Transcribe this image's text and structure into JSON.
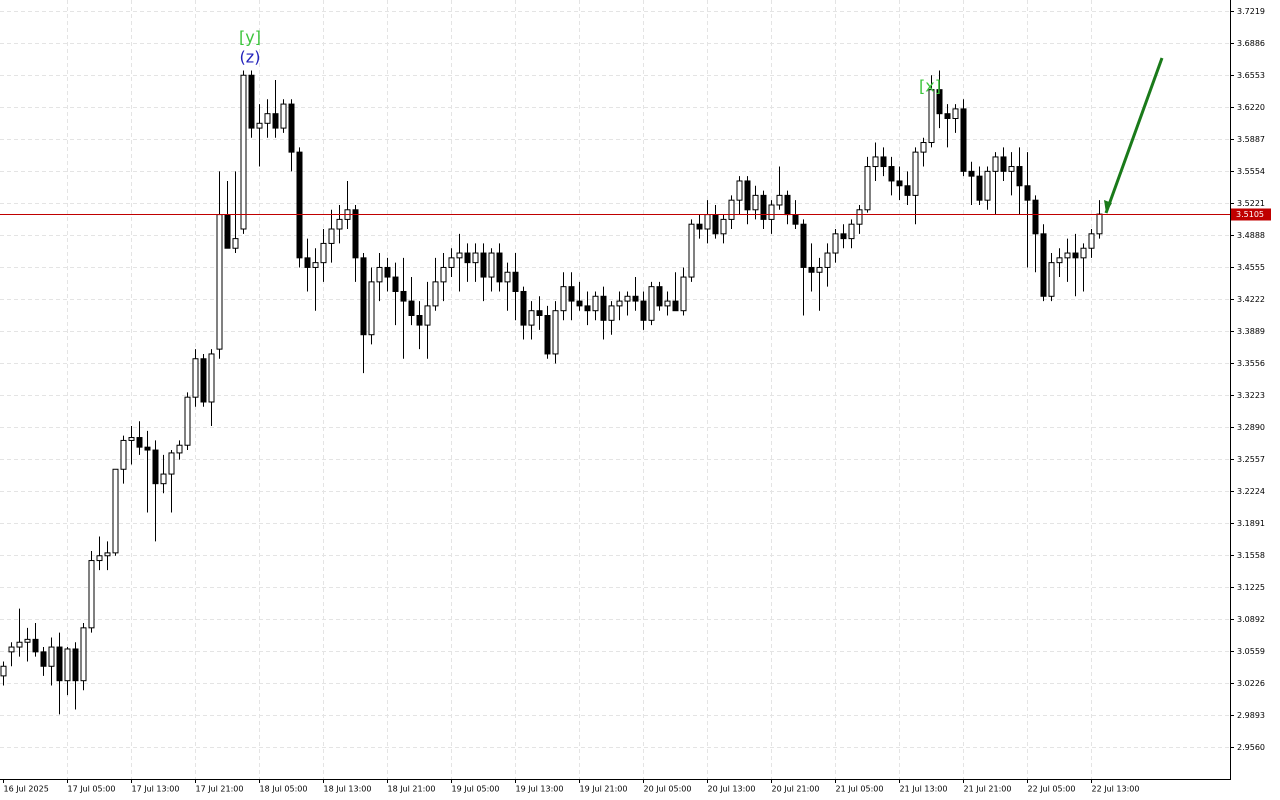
{
  "chart_data": {
    "type": "candlestick",
    "categories": [
      "16 Jul 2025",
      null,
      null,
      null,
      null,
      null,
      null,
      null,
      "17 Jul 05:00",
      null,
      null,
      null,
      null,
      null,
      null,
      null,
      "17 Jul 13:00",
      null,
      null,
      null,
      null,
      null,
      null,
      null,
      "17 Jul 21:00",
      null,
      null,
      null,
      null,
      null,
      null,
      null,
      "18 Jul 05:00",
      null,
      null,
      null,
      null,
      null,
      null,
      null,
      "18 Jul 13:00",
      null,
      null,
      null,
      null,
      null,
      null,
      null,
      "18 Jul 21:00",
      null,
      null,
      null,
      null,
      null,
      null,
      null,
      "19 Jul 05:00",
      null,
      null,
      null,
      null,
      null,
      null,
      null,
      "19 Jul 13:00",
      null,
      null,
      null,
      null,
      null,
      null,
      null,
      "19 Jul 21:00",
      null,
      null,
      null,
      null,
      null,
      null,
      null,
      "20 Jul 05:00",
      null,
      null,
      null,
      null,
      null,
      null,
      null,
      "20 Jul 13:00",
      null,
      null,
      null,
      null,
      null,
      null,
      null,
      "20 Jul 21:00",
      null,
      null,
      null,
      null,
      null,
      null,
      null,
      "21 Jul 05:00",
      null,
      null,
      null,
      null,
      null,
      null,
      null,
      "21 Jul 13:00",
      null,
      null,
      null,
      null,
      null,
      null,
      null,
      "21 Jul 21:00",
      null,
      null,
      null,
      null,
      null,
      null,
      null,
      "22 Jul 05:00",
      null,
      null,
      null,
      null,
      null,
      null,
      null,
      "22 Jul 13:00",
      null
    ],
    "ohlc": [
      [
        3.03,
        3.045,
        3.02,
        3.04
      ],
      [
        3.055,
        3.065,
        3.04,
        3.06
      ],
      [
        3.06,
        3.1,
        3.05,
        3.065
      ],
      [
        3.065,
        3.08,
        3.045,
        3.068
      ],
      [
        3.068,
        3.085,
        3.05,
        3.055
      ],
      [
        3.055,
        3.06,
        3.03,
        3.04
      ],
      [
        3.04,
        3.07,
        3.02,
        3.06
      ],
      [
        3.06,
        3.075,
        2.99,
        3.025
      ],
      [
        3.025,
        3.06,
        3.01,
        3.058
      ],
      [
        3.058,
        3.065,
        2.995,
        3.025
      ],
      [
        3.025,
        3.085,
        3.015,
        3.08
      ],
      [
        3.08,
        3.16,
        3.075,
        3.15
      ],
      [
        3.15,
        3.175,
        3.14,
        3.155
      ],
      [
        3.155,
        3.17,
        3.14,
        3.158
      ],
      [
        3.158,
        3.245,
        3.155,
        3.245
      ],
      [
        3.245,
        3.28,
        3.23,
        3.275
      ],
      [
        3.275,
        3.29,
        3.25,
        3.278
      ],
      [
        3.278,
        3.295,
        3.26,
        3.268
      ],
      [
        3.268,
        3.285,
        3.2,
        3.265
      ],
      [
        3.265,
        3.275,
        3.17,
        3.23
      ],
      [
        3.23,
        3.26,
        3.22,
        3.24
      ],
      [
        3.24,
        3.265,
        3.2,
        3.262
      ],
      [
        3.262,
        3.275,
        3.255,
        3.27
      ],
      [
        3.27,
        3.325,
        3.265,
        3.32
      ],
      [
        3.32,
        3.37,
        3.31,
        3.36
      ],
      [
        3.36,
        3.365,
        3.31,
        3.315
      ],
      [
        3.315,
        3.37,
        3.29,
        3.365
      ],
      [
        3.37,
        3.555,
        3.36,
        3.51
      ],
      [
        3.51,
        3.545,
        3.475,
        3.475
      ],
      [
        3.475,
        3.555,
        3.47,
        3.485
      ],
      [
        3.495,
        3.66,
        3.49,
        3.655
      ],
      [
        3.655,
        3.66,
        3.59,
        3.6
      ],
      [
        3.6,
        3.625,
        3.56,
        3.605
      ],
      [
        3.605,
        3.63,
        3.59,
        3.615
      ],
      [
        3.615,
        3.65,
        3.59,
        3.6
      ],
      [
        3.6,
        3.63,
        3.595,
        3.625
      ],
      [
        3.625,
        3.63,
        3.555,
        3.575
      ],
      [
        3.575,
        3.58,
        3.455,
        3.465
      ],
      [
        3.465,
        3.485,
        3.43,
        3.455
      ],
      [
        3.455,
        3.475,
        3.41,
        3.46
      ],
      [
        3.46,
        3.495,
        3.44,
        3.48
      ],
      [
        3.48,
        3.515,
        3.46,
        3.495
      ],
      [
        3.495,
        3.52,
        3.48,
        3.505
      ],
      [
        3.505,
        3.545,
        3.495,
        3.515
      ],
      [
        3.515,
        3.52,
        3.44,
        3.465
      ],
      [
        3.465,
        3.47,
        3.345,
        3.385
      ],
      [
        3.385,
        3.455,
        3.375,
        3.44
      ],
      [
        3.44,
        3.47,
        3.42,
        3.455
      ],
      [
        3.455,
        3.465,
        3.43,
        3.445
      ],
      [
        3.445,
        3.46,
        3.395,
        3.43
      ],
      [
        3.43,
        3.465,
        3.36,
        3.42
      ],
      [
        3.42,
        3.445,
        3.395,
        3.405
      ],
      [
        3.405,
        3.42,
        3.37,
        3.395
      ],
      [
        3.395,
        3.44,
        3.36,
        3.415
      ],
      [
        3.415,
        3.465,
        3.41,
        3.44
      ],
      [
        3.44,
        3.47,
        3.42,
        3.455
      ],
      [
        3.455,
        3.475,
        3.445,
        3.465
      ],
      [
        3.465,
        3.49,
        3.43,
        3.47
      ],
      [
        3.47,
        3.48,
        3.44,
        3.46
      ],
      [
        3.46,
        3.48,
        3.44,
        3.47
      ],
      [
        3.47,
        3.48,
        3.42,
        3.445
      ],
      [
        3.445,
        3.475,
        3.43,
        3.47
      ],
      [
        3.47,
        3.48,
        3.43,
        3.44
      ],
      [
        3.44,
        3.46,
        3.41,
        3.45
      ],
      [
        3.45,
        3.47,
        3.4,
        3.43
      ],
      [
        3.43,
        3.435,
        3.38,
        3.395
      ],
      [
        3.395,
        3.42,
        3.38,
        3.41
      ],
      [
        3.41,
        3.425,
        3.39,
        3.405
      ],
      [
        3.405,
        3.415,
        3.36,
        3.365
      ],
      [
        3.365,
        3.42,
        3.355,
        3.41
      ],
      [
        3.41,
        3.45,
        3.4,
        3.435
      ],
      [
        3.435,
        3.45,
        3.4,
        3.42
      ],
      [
        3.42,
        3.44,
        3.41,
        3.415
      ],
      [
        3.415,
        3.43,
        3.395,
        3.41
      ],
      [
        3.41,
        3.43,
        3.4,
        3.425
      ],
      [
        3.425,
        3.435,
        3.38,
        3.4
      ],
      [
        3.4,
        3.42,
        3.385,
        3.415
      ],
      [
        3.415,
        3.43,
        3.4,
        3.42
      ],
      [
        3.42,
        3.43,
        3.405,
        3.425
      ],
      [
        3.425,
        3.445,
        3.41,
        3.42
      ],
      [
        3.42,
        3.43,
        3.39,
        3.4
      ],
      [
        3.4,
        3.44,
        3.395,
        3.435
      ],
      [
        3.435,
        3.44,
        3.41,
        3.415
      ],
      [
        3.415,
        3.43,
        3.405,
        3.42
      ],
      [
        3.42,
        3.45,
        3.41,
        3.41
      ],
      [
        3.41,
        3.455,
        3.405,
        3.445
      ],
      [
        3.445,
        3.505,
        3.44,
        3.5
      ],
      [
        3.5,
        3.51,
        3.485,
        3.495
      ],
      [
        3.495,
        3.525,
        3.48,
        3.51
      ],
      [
        3.51,
        3.52,
        3.485,
        3.49
      ],
      [
        3.49,
        3.51,
        3.48,
        3.505
      ],
      [
        3.505,
        3.53,
        3.495,
        3.525
      ],
      [
        3.525,
        3.55,
        3.51,
        3.545
      ],
      [
        3.545,
        3.55,
        3.5,
        3.515
      ],
      [
        3.515,
        3.54,
        3.505,
        3.53
      ],
      [
        3.53,
        3.535,
        3.495,
        3.505
      ],
      [
        3.505,
        3.525,
        3.49,
        3.52
      ],
      [
        3.52,
        3.56,
        3.515,
        3.53
      ],
      [
        3.53,
        3.535,
        3.5,
        3.51
      ],
      [
        3.51,
        3.525,
        3.495,
        3.5
      ],
      [
        3.5,
        3.505,
        3.405,
        3.455
      ],
      [
        3.455,
        3.48,
        3.43,
        3.45
      ],
      [
        3.45,
        3.465,
        3.41,
        3.455
      ],
      [
        3.455,
        3.48,
        3.435,
        3.47
      ],
      [
        3.47,
        3.495,
        3.46,
        3.49
      ],
      [
        3.49,
        3.5,
        3.475,
        3.485
      ],
      [
        3.485,
        3.505,
        3.475,
        3.5
      ],
      [
        3.5,
        3.52,
        3.49,
        3.515
      ],
      [
        3.515,
        3.57,
        3.512,
        3.56
      ],
      [
        3.56,
        3.585,
        3.545,
        3.57
      ],
      [
        3.57,
        3.58,
        3.55,
        3.56
      ],
      [
        3.56,
        3.57,
        3.53,
        3.545
      ],
      [
        3.545,
        3.56,
        3.525,
        3.54
      ],
      [
        3.54,
        3.555,
        3.52,
        3.53
      ],
      [
        3.53,
        3.58,
        3.5,
        3.575
      ],
      [
        3.575,
        3.59,
        3.56,
        3.585
      ],
      [
        3.585,
        3.655,
        3.58,
        3.64
      ],
      [
        3.64,
        3.66,
        3.6,
        3.615
      ],
      [
        3.615,
        3.625,
        3.58,
        3.61
      ],
      [
        3.61,
        3.625,
        3.595,
        3.62
      ],
      [
        3.62,
        3.63,
        3.55,
        3.555
      ],
      [
        3.555,
        3.565,
        3.52,
        3.55
      ],
      [
        3.55,
        3.56,
        3.52,
        3.525
      ],
      [
        3.525,
        3.56,
        3.515,
        3.555
      ],
      [
        3.555,
        3.575,
        3.51,
        3.57
      ],
      [
        3.57,
        3.58,
        3.545,
        3.555
      ],
      [
        3.555,
        3.575,
        3.53,
        3.56
      ],
      [
        3.56,
        3.58,
        3.51,
        3.54
      ],
      [
        3.54,
        3.575,
        3.455,
        3.525
      ],
      [
        3.525,
        3.53,
        3.45,
        3.49
      ],
      [
        3.49,
        3.5,
        3.42,
        3.425
      ],
      [
        3.425,
        3.47,
        3.42,
        3.46
      ],
      [
        3.46,
        3.475,
        3.445,
        3.465
      ],
      [
        3.465,
        3.485,
        3.44,
        3.47
      ],
      [
        3.47,
        3.49,
        3.425,
        3.465
      ],
      [
        3.465,
        3.48,
        3.43,
        3.475
      ],
      [
        3.475,
        3.495,
        3.465,
        3.49
      ],
      [
        3.49,
        3.525,
        3.485,
        3.5105
      ]
    ],
    "ylim": [
      2.9227,
      3.7333
    ],
    "yticks": [
      3.7219,
      3.6886,
      3.6553,
      {
        "value": 3.622,
        "label": "3.6220"
      },
      3.5887,
      3.5554,
      3.5221,
      3.4888,
      3.4555,
      3.4222,
      3.3889,
      3.3556,
      3.3223,
      {
        "value": 3.289,
        "label": "3.2890"
      },
      3.2557,
      3.2224,
      3.1891,
      3.1558,
      3.1225,
      3.0892,
      3.0559,
      3.0226,
      2.9893,
      {
        "value": 2.956,
        "label": "2.9560"
      }
    ],
    "current_price": 3.5105,
    "current_price_color": "#c00000",
    "grid": true,
    "annotations": [
      "[y]",
      "(z)",
      "[x]"
    ]
  }
}
